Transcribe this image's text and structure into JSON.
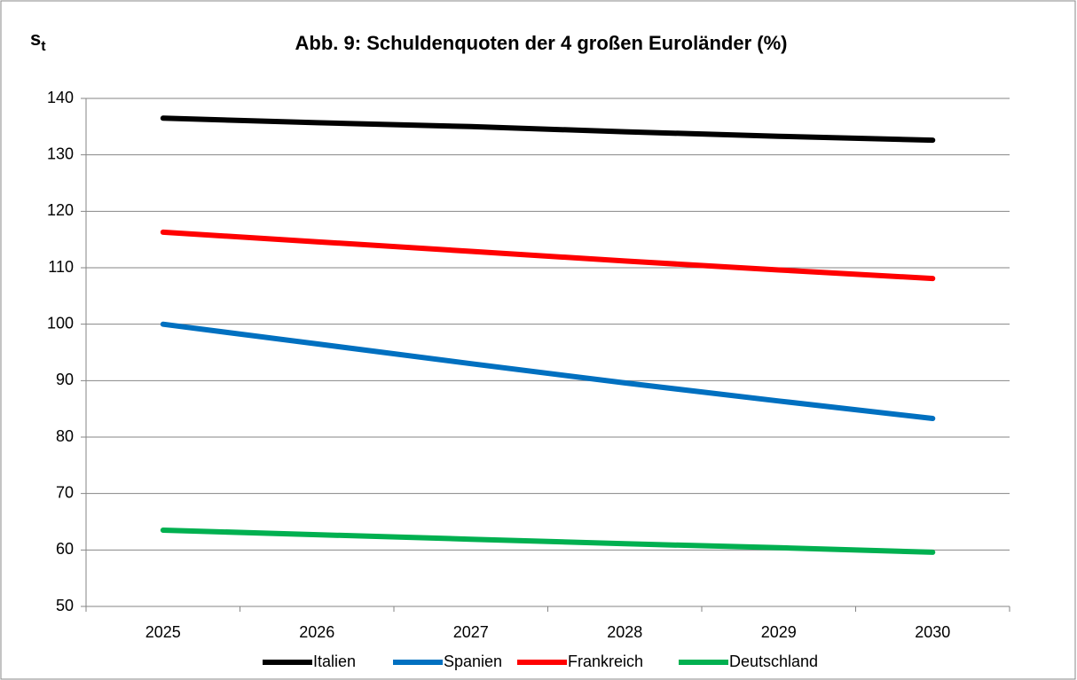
{
  "chart_data": {
    "type": "line",
    "title": "Abb. 9: Schuldenquoten der 4 großen Euroländer (%)",
    "y_label": {
      "base": "s",
      "subscript": "t"
    },
    "categories": [
      "2025",
      "2026",
      "2027",
      "2028",
      "2029",
      "2030"
    ],
    "series": [
      {
        "name": "Italien",
        "color": "#000000",
        "values": [
          136.5,
          135.7,
          135.0,
          134.1,
          133.3,
          132.6
        ]
      },
      {
        "name": "Spanien",
        "color": "#0070c0",
        "values": [
          100.0,
          96.5,
          93.0,
          89.6,
          86.4,
          83.3
        ]
      },
      {
        "name": "Frankreich",
        "color": "#ff0000",
        "values": [
          116.3,
          114.6,
          112.9,
          111.2,
          109.6,
          108.1
        ]
      },
      {
        "name": "Deutschland",
        "color": "#00b050",
        "values": [
          63.5,
          62.7,
          61.9,
          61.1,
          60.4,
          59.6
        ]
      }
    ],
    "ylim": [
      50,
      140
    ],
    "yticks": [
      50,
      60,
      70,
      80,
      90,
      100,
      110,
      120,
      130,
      140
    ],
    "grid": true,
    "legend": "bottom"
  }
}
